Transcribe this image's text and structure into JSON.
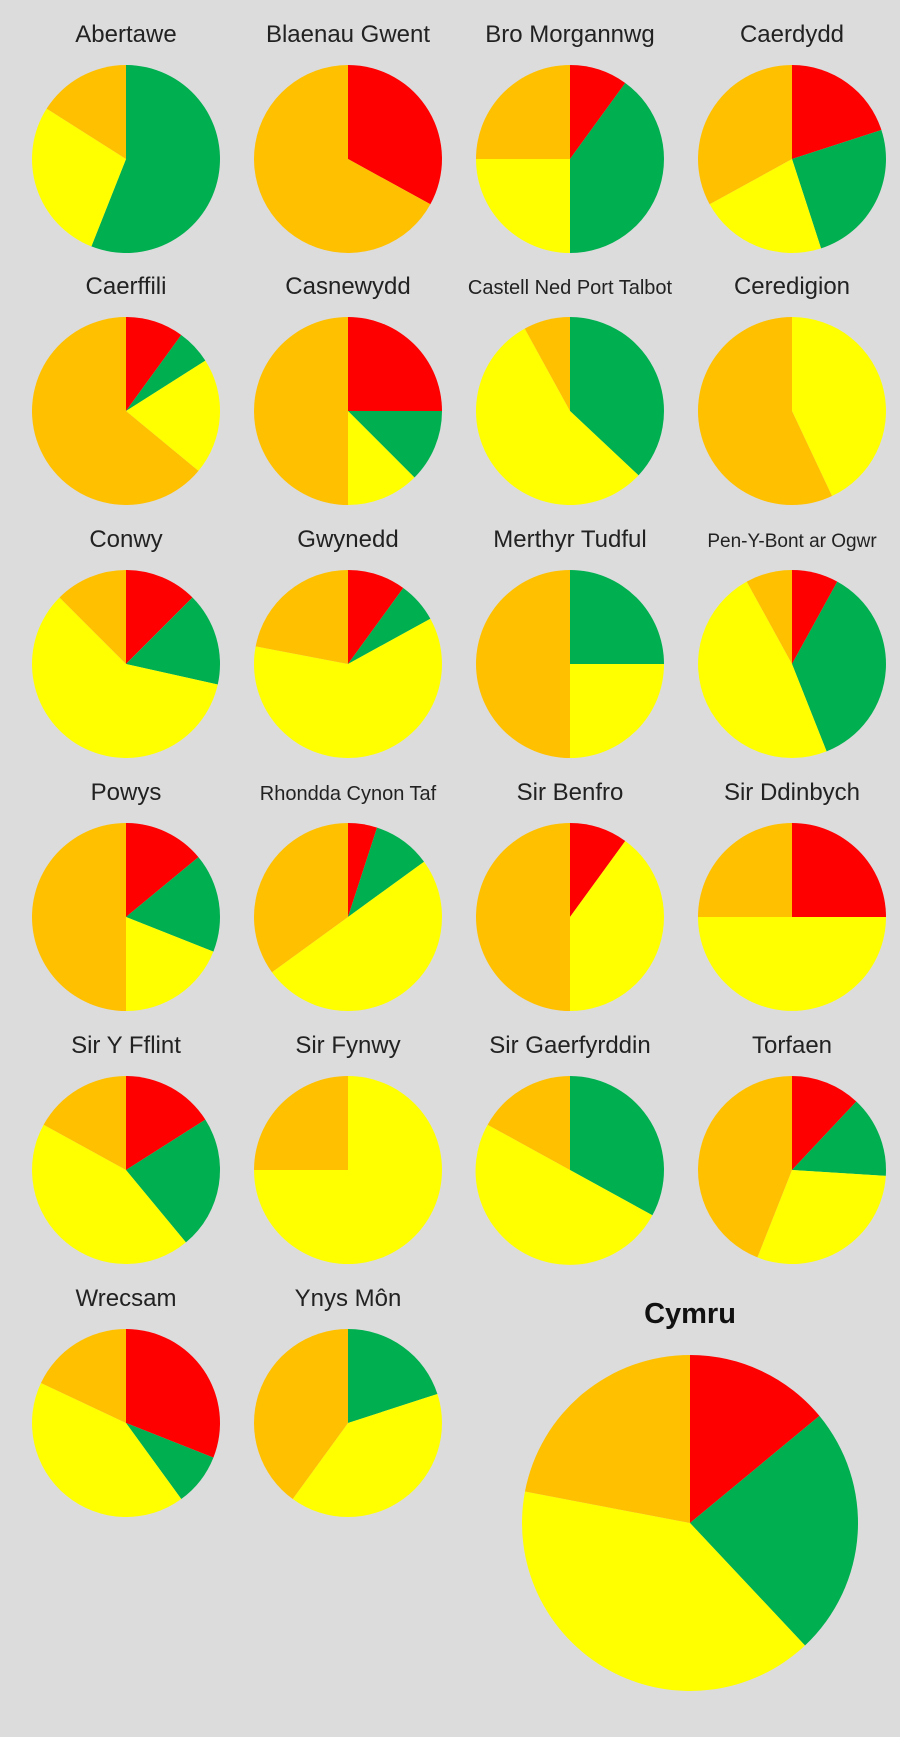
{
  "chart_data": {
    "type": "pie",
    "series_colors": {
      "red": "#ff0000",
      "green": "#00b050",
      "yellow": "#ffff00",
      "orange": "#ffc000"
    },
    "charts": [
      {
        "title": "Abertawe",
        "slices": [
          {
            "color": "green",
            "value": 56
          },
          {
            "color": "yellow",
            "value": 28
          },
          {
            "color": "orange",
            "value": 16
          }
        ]
      },
      {
        "title": "Blaenau Gwent",
        "slices": [
          {
            "color": "red",
            "value": 33
          },
          {
            "color": "orange",
            "value": 67
          }
        ]
      },
      {
        "title": "Bro Morgannwg",
        "slices": [
          {
            "color": "red",
            "value": 10
          },
          {
            "color": "green",
            "value": 40
          },
          {
            "color": "yellow",
            "value": 25
          },
          {
            "color": "orange",
            "value": 25
          }
        ]
      },
      {
        "title": "Caerdydd",
        "slices": [
          {
            "color": "red",
            "value": 20
          },
          {
            "color": "green",
            "value": 25
          },
          {
            "color": "yellow",
            "value": 22
          },
          {
            "color": "orange",
            "value": 33
          }
        ]
      },
      {
        "title": "Caerffili",
        "slices": [
          {
            "color": "red",
            "value": 10
          },
          {
            "color": "green",
            "value": 6
          },
          {
            "color": "yellow",
            "value": 20
          },
          {
            "color": "orange",
            "value": 64
          }
        ]
      },
      {
        "title": "Casnewydd",
        "slices": [
          {
            "color": "red",
            "value": 25
          },
          {
            "color": "green",
            "value": 12.5
          },
          {
            "color": "yellow",
            "value": 12.5
          },
          {
            "color": "orange",
            "value": 50
          }
        ]
      },
      {
        "title": "Castell Ned Port Talbot",
        "slices": [
          {
            "color": "green",
            "value": 37
          },
          {
            "color": "yellow",
            "value": 55
          },
          {
            "color": "orange",
            "value": 8
          }
        ]
      },
      {
        "title": "Ceredigion",
        "slices": [
          {
            "color": "yellow",
            "value": 43
          },
          {
            "color": "orange",
            "value": 57
          }
        ]
      },
      {
        "title": "Conwy",
        "slices": [
          {
            "color": "red",
            "value": 12.5
          },
          {
            "color": "green",
            "value": 16
          },
          {
            "color": "yellow",
            "value": 59
          },
          {
            "color": "orange",
            "value": 12.5
          }
        ]
      },
      {
        "title": "Gwynedd",
        "slices": [
          {
            "color": "red",
            "value": 10
          },
          {
            "color": "green",
            "value": 7
          },
          {
            "color": "yellow",
            "value": 61
          },
          {
            "color": "orange",
            "value": 22
          }
        ]
      },
      {
        "title": "Merthyr Tudful",
        "slices": [
          {
            "color": "green",
            "value": 25
          },
          {
            "color": "yellow",
            "value": 25
          },
          {
            "color": "orange",
            "value": 50
          }
        ]
      },
      {
        "title": "Pen-Y-Bont ar Ogwr",
        "slices": [
          {
            "color": "red",
            "value": 8
          },
          {
            "color": "green",
            "value": 36
          },
          {
            "color": "yellow",
            "value": 48
          },
          {
            "color": "orange",
            "value": 8
          }
        ]
      },
      {
        "title": "Powys",
        "slices": [
          {
            "color": "red",
            "value": 14
          },
          {
            "color": "green",
            "value": 17
          },
          {
            "color": "yellow",
            "value": 19
          },
          {
            "color": "orange",
            "value": 50
          }
        ]
      },
      {
        "title": "Rhondda Cynon Taf",
        "slices": [
          {
            "color": "red",
            "value": 5
          },
          {
            "color": "green",
            "value": 10
          },
          {
            "color": "yellow",
            "value": 50
          },
          {
            "color": "orange",
            "value": 35
          }
        ]
      },
      {
        "title": "Sir Benfro",
        "slices": [
          {
            "color": "red",
            "value": 10
          },
          {
            "color": "yellow",
            "value": 40
          },
          {
            "color": "orange",
            "value": 50
          }
        ]
      },
      {
        "title": "Sir Ddinbych",
        "slices": [
          {
            "color": "red",
            "value": 25
          },
          {
            "color": "yellow",
            "value": 50
          },
          {
            "color": "orange",
            "value": 25
          }
        ]
      },
      {
        "title": "Sir Y Fflint",
        "slices": [
          {
            "color": "red",
            "value": 16
          },
          {
            "color": "green",
            "value": 23
          },
          {
            "color": "yellow",
            "value": 44
          },
          {
            "color": "orange",
            "value": 17
          }
        ]
      },
      {
        "title": "Sir Fynwy",
        "slices": [
          {
            "color": "yellow",
            "value": 75
          },
          {
            "color": "orange",
            "value": 25
          }
        ]
      },
      {
        "title": "Sir Gaerfyrddin",
        "slices": [
          {
            "color": "green",
            "value": 33
          },
          {
            "color": "yellow",
            "value": 50
          },
          {
            "color": "orange",
            "value": 17
          }
        ]
      },
      {
        "title": "Torfaen",
        "slices": [
          {
            "color": "red",
            "value": 12
          },
          {
            "color": "green",
            "value": 14
          },
          {
            "color": "yellow",
            "value": 30
          },
          {
            "color": "orange",
            "value": 44
          }
        ]
      },
      {
        "title": "Wrecsam",
        "slices": [
          {
            "color": "red",
            "value": 31
          },
          {
            "color": "green",
            "value": 9
          },
          {
            "color": "yellow",
            "value": 42
          },
          {
            "color": "orange",
            "value": 18
          }
        ]
      },
      {
        "title": "Ynys Môn",
        "slices": [
          {
            "color": "green",
            "value": 20
          },
          {
            "color": "yellow",
            "value": 40
          },
          {
            "color": "orange",
            "value": 40
          }
        ]
      }
    ],
    "summary": {
      "title": "Cymru",
      "slices": [
        {
          "color": "red",
          "value": 14
        },
        {
          "color": "green",
          "value": 24
        },
        {
          "color": "yellow",
          "value": 40
        },
        {
          "color": "orange",
          "value": 22
        }
      ]
    }
  }
}
